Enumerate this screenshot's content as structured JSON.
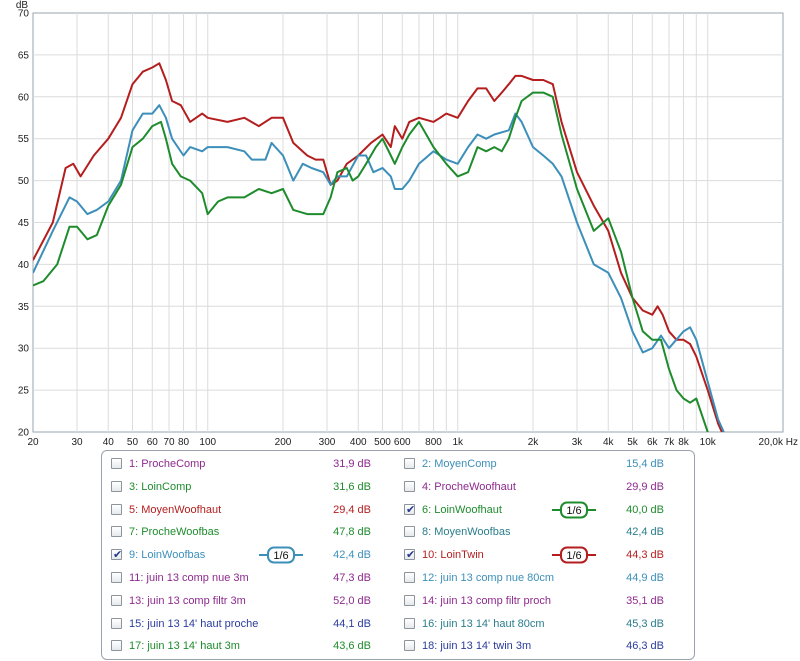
{
  "chart_data": {
    "type": "line",
    "ylabel": "dB",
    "xunit": "Hz",
    "xscale": "log",
    "xlim": [
      20,
      20000
    ],
    "ylim": [
      20,
      70
    ],
    "grid": true,
    "x_ticks": [
      {
        "v": 20,
        "t": "20"
      },
      {
        "v": 30,
        "t": "30"
      },
      {
        "v": 40,
        "t": "40"
      },
      {
        "v": 50,
        "t": "50"
      },
      {
        "v": 60,
        "t": "60"
      },
      {
        "v": 70,
        "t": "70"
      },
      {
        "v": 80,
        "t": "80"
      },
      {
        "v": 100,
        "t": "100"
      },
      {
        "v": 200,
        "t": "200"
      },
      {
        "v": 300,
        "t": "300"
      },
      {
        "v": 400,
        "t": "400"
      },
      {
        "v": 500,
        "t": "500"
      },
      {
        "v": 600,
        "t": "600"
      },
      {
        "v": 800,
        "t": "800"
      },
      {
        "v": 1000,
        "t": "1k"
      },
      {
        "v": 2000,
        "t": "2k"
      },
      {
        "v": 3000,
        "t": "3k"
      },
      {
        "v": 4000,
        "t": "4k"
      },
      {
        "v": 5000,
        "t": "5k"
      },
      {
        "v": 6000,
        "t": "6k"
      },
      {
        "v": 7000,
        "t": "7k"
      },
      {
        "v": 8000,
        "t": "8k"
      },
      {
        "v": 10000,
        "t": "10k"
      },
      {
        "v": 20000,
        "t": "20,0k Hz"
      }
    ],
    "y_ticks": [
      20,
      25,
      30,
      35,
      40,
      45,
      50,
      55,
      60,
      65,
      70
    ],
    "series": [
      {
        "name": "10: LoinTwin",
        "color": "#b41e1e",
        "points": [
          [
            20,
            40.5
          ],
          [
            24,
            45
          ],
          [
            27,
            51.5
          ],
          [
            29,
            52
          ],
          [
            31,
            50.5
          ],
          [
            35,
            53
          ],
          [
            40,
            55
          ],
          [
            45,
            57.5
          ],
          [
            50,
            61.5
          ],
          [
            55,
            63
          ],
          [
            60,
            63.5
          ],
          [
            64,
            64
          ],
          [
            68,
            62
          ],
          [
            72,
            59.5
          ],
          [
            78,
            59
          ],
          [
            85,
            57
          ],
          [
            95,
            58
          ],
          [
            100,
            57.5
          ],
          [
            120,
            57
          ],
          [
            140,
            57.5
          ],
          [
            160,
            56.5
          ],
          [
            180,
            57.5
          ],
          [
            200,
            57.5
          ],
          [
            220,
            54.5
          ],
          [
            250,
            53
          ],
          [
            270,
            52.5
          ],
          [
            290,
            52.5
          ],
          [
            310,
            49.5
          ],
          [
            330,
            50
          ],
          [
            360,
            52
          ],
          [
            400,
            53
          ],
          [
            450,
            54.5
          ],
          [
            500,
            55.5
          ],
          [
            540,
            54
          ],
          [
            560,
            56.5
          ],
          [
            600,
            55
          ],
          [
            640,
            57
          ],
          [
            700,
            57.5
          ],
          [
            800,
            57
          ],
          [
            850,
            57.5
          ],
          [
            900,
            58
          ],
          [
            1000,
            57.5
          ],
          [
            1100,
            59.5
          ],
          [
            1200,
            61
          ],
          [
            1300,
            61
          ],
          [
            1400,
            59.5
          ],
          [
            1500,
            60.5
          ],
          [
            1600,
            61.5
          ],
          [
            1700,
            62.5
          ],
          [
            1800,
            62.5
          ],
          [
            2000,
            62
          ],
          [
            2200,
            62
          ],
          [
            2400,
            61.5
          ],
          [
            2600,
            57
          ],
          [
            3000,
            51
          ],
          [
            3500,
            47
          ],
          [
            4000,
            44
          ],
          [
            4500,
            39
          ],
          [
            5000,
            36
          ],
          [
            5500,
            34.5
          ],
          [
            6000,
            34
          ],
          [
            6300,
            35
          ],
          [
            6600,
            34
          ],
          [
            7000,
            32
          ],
          [
            7500,
            31
          ],
          [
            8000,
            31
          ],
          [
            8500,
            30.5
          ],
          [
            9000,
            29
          ],
          [
            10000,
            25
          ],
          [
            11000,
            21
          ],
          [
            12000,
            18.5
          ]
        ]
      },
      {
        "name": "9: LoinWoofbas",
        "color": "#3c8fb9",
        "points": [
          [
            20,
            39
          ],
          [
            24,
            44
          ],
          [
            28,
            48
          ],
          [
            30,
            47.5
          ],
          [
            33,
            46
          ],
          [
            36,
            46.5
          ],
          [
            40,
            47.5
          ],
          [
            45,
            50
          ],
          [
            50,
            56
          ],
          [
            55,
            58
          ],
          [
            60,
            58
          ],
          [
            64,
            59
          ],
          [
            68,
            57.5
          ],
          [
            72,
            55
          ],
          [
            80,
            53
          ],
          [
            85,
            54
          ],
          [
            95,
            53.5
          ],
          [
            100,
            54
          ],
          [
            120,
            54
          ],
          [
            140,
            53.5
          ],
          [
            150,
            52.5
          ],
          [
            170,
            52.5
          ],
          [
            180,
            54.5
          ],
          [
            200,
            53
          ],
          [
            220,
            50
          ],
          [
            240,
            52
          ],
          [
            260,
            51.5
          ],
          [
            290,
            51
          ],
          [
            310,
            49.5
          ],
          [
            330,
            50.5
          ],
          [
            360,
            50.5
          ],
          [
            400,
            53
          ],
          [
            430,
            53
          ],
          [
            460,
            51
          ],
          [
            500,
            51.5
          ],
          [
            540,
            50.5
          ],
          [
            560,
            49
          ],
          [
            600,
            49
          ],
          [
            640,
            50
          ],
          [
            700,
            52
          ],
          [
            800,
            53.5
          ],
          [
            900,
            52.5
          ],
          [
            1000,
            52
          ],
          [
            1100,
            54
          ],
          [
            1200,
            55.5
          ],
          [
            1300,
            55
          ],
          [
            1400,
            55.5
          ],
          [
            1600,
            56
          ],
          [
            1700,
            58
          ],
          [
            1800,
            57
          ],
          [
            2000,
            54
          ],
          [
            2200,
            53
          ],
          [
            2400,
            52
          ],
          [
            2600,
            50.5
          ],
          [
            3000,
            45
          ],
          [
            3500,
            40
          ],
          [
            4000,
            39
          ],
          [
            4500,
            36
          ],
          [
            5000,
            32
          ],
          [
            5500,
            29.5
          ],
          [
            6000,
            30
          ],
          [
            6500,
            31.5
          ],
          [
            7000,
            30
          ],
          [
            8000,
            32
          ],
          [
            8500,
            32.5
          ],
          [
            9000,
            31
          ],
          [
            10000,
            26
          ],
          [
            11000,
            21.5
          ],
          [
            12000,
            19
          ]
        ]
      },
      {
        "name": "6: LoinWoofhaut",
        "color": "#1e8c2d",
        "points": [
          [
            20,
            37.5
          ],
          [
            22,
            38
          ],
          [
            25,
            40
          ],
          [
            28,
            44.5
          ],
          [
            30,
            44.5
          ],
          [
            33,
            43
          ],
          [
            36,
            43.5
          ],
          [
            40,
            47
          ],
          [
            45,
            49.5
          ],
          [
            50,
            54
          ],
          [
            55,
            55
          ],
          [
            60,
            56.5
          ],
          [
            65,
            57
          ],
          [
            68,
            55
          ],
          [
            72,
            52
          ],
          [
            78,
            50.5
          ],
          [
            85,
            50
          ],
          [
            95,
            48.5
          ],
          [
            100,
            46
          ],
          [
            110,
            47.5
          ],
          [
            120,
            48
          ],
          [
            140,
            48
          ],
          [
            160,
            49
          ],
          [
            180,
            48.5
          ],
          [
            200,
            49
          ],
          [
            220,
            46.5
          ],
          [
            250,
            46
          ],
          [
            270,
            46
          ],
          [
            290,
            46
          ],
          [
            310,
            48
          ],
          [
            330,
            51
          ],
          [
            360,
            51.5
          ],
          [
            380,
            50
          ],
          [
            400,
            50.5
          ],
          [
            430,
            52
          ],
          [
            470,
            54
          ],
          [
            500,
            55
          ],
          [
            540,
            53
          ],
          [
            560,
            52
          ],
          [
            600,
            54
          ],
          [
            640,
            55.5
          ],
          [
            700,
            57
          ],
          [
            800,
            54
          ],
          [
            900,
            52
          ],
          [
            1000,
            50.5
          ],
          [
            1100,
            51
          ],
          [
            1200,
            54
          ],
          [
            1300,
            53.5
          ],
          [
            1400,
            54
          ],
          [
            1500,
            53.5
          ],
          [
            1600,
            55
          ],
          [
            1700,
            57.5
          ],
          [
            1800,
            59.5
          ],
          [
            2000,
            60.5
          ],
          [
            2200,
            60.5
          ],
          [
            2400,
            60
          ],
          [
            2600,
            55.5
          ],
          [
            3000,
            49
          ],
          [
            3500,
            44
          ],
          [
            4000,
            45.5
          ],
          [
            4500,
            41.5
          ],
          [
            5000,
            36
          ],
          [
            5500,
            32
          ],
          [
            6000,
            31
          ],
          [
            6500,
            31
          ],
          [
            7000,
            27.5
          ],
          [
            7500,
            25
          ],
          [
            8000,
            24
          ],
          [
            8500,
            23.5
          ],
          [
            9000,
            24
          ],
          [
            10000,
            20
          ],
          [
            11000,
            18
          ]
        ]
      }
    ]
  },
  "legend": [
    {
      "label": "1: ProcheComp",
      "value": "31,9 dB",
      "color": "#8e2a8e",
      "checked": false,
      "badge": ""
    },
    {
      "label": "2: MoyenComp",
      "value": "15,4 dB",
      "color": "#3c8fb9",
      "checked": false,
      "badge": ""
    },
    {
      "label": "3: LoinComp",
      "value": "31,6 dB",
      "color": "#1e8c2d",
      "checked": false,
      "badge": ""
    },
    {
      "label": "4: ProcheWoofhaut",
      "value": "29,9 dB",
      "color": "#8e2a8e",
      "checked": false,
      "badge": ""
    },
    {
      "label": "5: MoyenWoofhaut",
      "value": "29,4 dB",
      "color": "#b41e1e",
      "checked": false,
      "badge": ""
    },
    {
      "label": "6: LoinWoofhaut",
      "value": "40,0 dB",
      "color": "#1e8c2d",
      "checked": true,
      "badge": "1/6"
    },
    {
      "label": "7: ProcheWoofbas",
      "value": "47,8 dB",
      "color": "#1e8c2d",
      "checked": false,
      "badge": ""
    },
    {
      "label": "8: MoyenWoofbas",
      "value": "42,4 dB",
      "color": "#2a7e8c",
      "checked": false,
      "badge": ""
    },
    {
      "label": "9: LoinWoofbas",
      "value": "42,4 dB",
      "color": "#3c8fb9",
      "checked": true,
      "badge": "1/6"
    },
    {
      "label": "10: LoinTwin",
      "value": "44,3 dB",
      "color": "#b41e1e",
      "checked": true,
      "badge": "1/6"
    },
    {
      "label": "11: juin 13 comp nue 3m",
      "value": "47,3 dB",
      "color": "#8e2a8e",
      "checked": false,
      "badge": ""
    },
    {
      "label": "12: juin 13 comp nue 80cm",
      "value": "44,9 dB",
      "color": "#3c8fb9",
      "checked": false,
      "badge": ""
    },
    {
      "label": "13: juin 13 comp filtr 3m",
      "value": "52,0 dB",
      "color": "#8e2a8e",
      "checked": false,
      "badge": ""
    },
    {
      "label": "14: juin 13 comp filtr proch",
      "value": "35,1 dB",
      "color": "#8e2a8e",
      "checked": false,
      "badge": ""
    },
    {
      "label": "15: juin 13 14' haut proche",
      "value": "44,1 dB",
      "color": "#2a3c9c",
      "checked": false,
      "badge": ""
    },
    {
      "label": "16: juin 13 14' haut 80cm",
      "value": "45,3 dB",
      "color": "#2a7e8c",
      "checked": false,
      "badge": ""
    },
    {
      "label": "17: juin 13 14' haut 3m",
      "value": "43,6 dB",
      "color": "#1e8c2d",
      "checked": false,
      "badge": ""
    },
    {
      "label": "18: juin 13 14' twin 3m",
      "value": "46,3 dB",
      "color": "#2a3c9c",
      "checked": false,
      "badge": ""
    }
  ]
}
